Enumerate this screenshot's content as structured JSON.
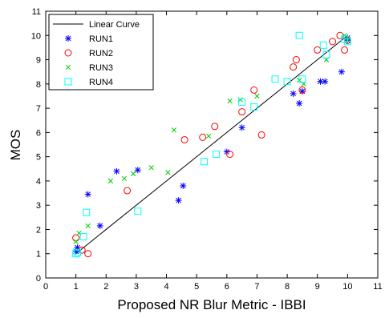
{
  "chart_data": {
    "type": "scatter",
    "title": "",
    "xlabel": "Proposed NR Blur Metric - IBBI",
    "ylabel": "MOS",
    "xlim": [
      0,
      11
    ],
    "ylim": [
      0,
      11
    ],
    "xticks": [
      "0",
      "1",
      "2",
      "3",
      "4",
      "5",
      "6",
      "7",
      "8",
      "9",
      "10",
      "11"
    ],
    "yticks": [
      "0",
      "1",
      "2",
      "3",
      "4",
      "5",
      "6",
      "7",
      "8",
      "9",
      "10",
      "11"
    ],
    "grid": false,
    "legend_position": "top-left",
    "line": {
      "name": "Linear Curve",
      "color": "#000000",
      "x": [
        1,
        10
      ],
      "y": [
        1,
        10
      ]
    },
    "series": [
      {
        "name": "RUN1",
        "marker": "asterisk",
        "color": "#0000ff",
        "x": [
          1.0,
          1.05,
          1.4,
          1.8,
          2.35,
          3.05,
          4.4,
          4.55,
          6.0,
          6.5,
          8.2,
          8.4,
          8.5,
          9.1,
          9.25,
          9.8,
          10.0,
          10.0
        ],
        "y": [
          1.1,
          1.25,
          3.45,
          2.15,
          4.4,
          4.45,
          3.2,
          3.8,
          5.2,
          6.2,
          7.6,
          7.2,
          7.7,
          8.1,
          8.1,
          8.5,
          9.8,
          9.9
        ]
      },
      {
        "name": "RUN2",
        "marker": "circle",
        "color": "#ff0000",
        "x": [
          1.0,
          1.2,
          1.4,
          2.7,
          4.6,
          5.2,
          5.6,
          6.1,
          6.5,
          6.9,
          7.15,
          8.2,
          8.3,
          8.5,
          9.0,
          9.5,
          9.75,
          9.9,
          10.0
        ],
        "y": [
          1.65,
          1.15,
          1.0,
          3.6,
          5.7,
          5.8,
          6.25,
          5.1,
          6.85,
          7.75,
          5.9,
          8.7,
          9.0,
          7.75,
          9.4,
          9.75,
          10.0,
          9.4,
          9.8
        ]
      },
      {
        "name": "RUN3",
        "marker": "x",
        "color": "#00cc00",
        "x": [
          1.0,
          1.1,
          1.4,
          2.15,
          2.6,
          2.9,
          3.5,
          4.05,
          4.25,
          5.4,
          6.1,
          6.45,
          7.0,
          8.4,
          8.55,
          9.3,
          9.9,
          10.0
        ],
        "y": [
          1.5,
          1.85,
          2.15,
          4.0,
          4.1,
          4.3,
          4.55,
          4.35,
          6.1,
          5.85,
          7.3,
          7.35,
          7.5,
          8.15,
          8.0,
          9.0,
          10.0,
          9.8
        ]
      },
      {
        "name": "RUN4",
        "marker": "square",
        "color": "#00ffff",
        "x": [
          1.0,
          1.05,
          1.25,
          1.35,
          3.05,
          5.25,
          5.65,
          6.5,
          6.9,
          7.6,
          8.0,
          8.4,
          8.5,
          9.2,
          9.3,
          9.9,
          10.0
        ],
        "y": [
          1.0,
          1.05,
          1.7,
          2.7,
          2.75,
          4.8,
          5.1,
          7.25,
          7.05,
          8.2,
          8.1,
          10.0,
          8.2,
          9.6,
          9.2,
          9.85,
          9.75
        ]
      }
    ]
  }
}
